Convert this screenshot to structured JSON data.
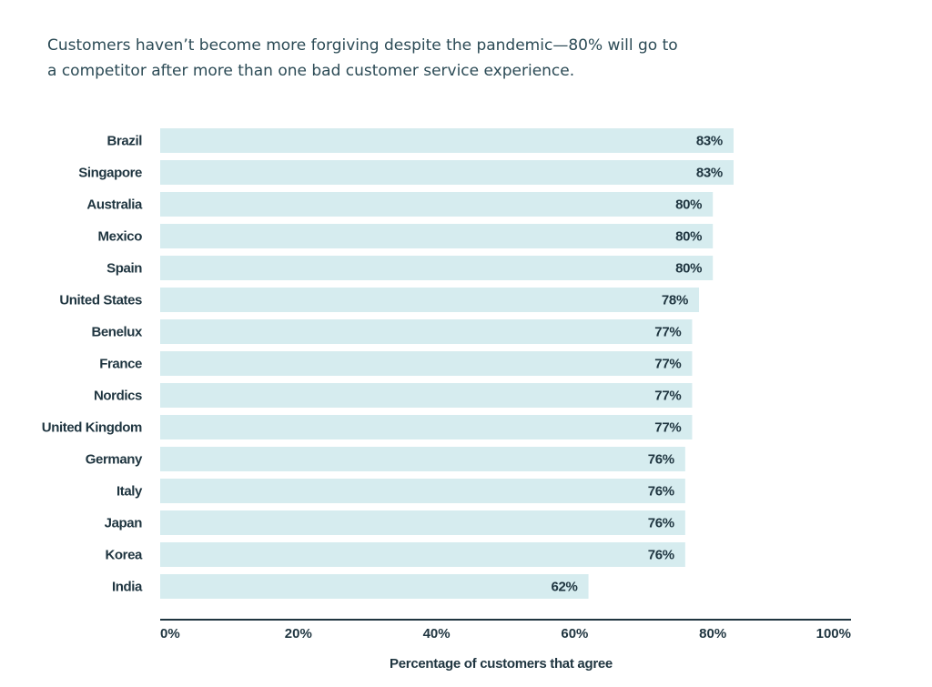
{
  "title": "Customers haven’t become more forgiving despite the pandemic—80% will go to a competitor after more than one bad customer service experience.",
  "colors": {
    "bar": "#d6ecef",
    "axis": "#1f3540",
    "text": "#1f3540",
    "title": "#2b4a55"
  },
  "chart_data": {
    "type": "bar",
    "orientation": "horizontal",
    "categories": [
      "Brazil",
      "Singapore",
      "Australia",
      "Mexico",
      "Spain",
      "United States",
      "Benelux",
      "France",
      "Nordics",
      "United Kingdom",
      "Germany",
      "Italy",
      "Japan",
      "Korea",
      "India"
    ],
    "values": [
      83,
      83,
      80,
      80,
      80,
      78,
      77,
      77,
      77,
      77,
      76,
      76,
      76,
      76,
      62
    ],
    "value_labels": [
      "83%",
      "83%",
      "80%",
      "80%",
      "80%",
      "78%",
      "77%",
      "77%",
      "77%",
      "77%",
      "76%",
      "76%",
      "76%",
      "76%",
      "62%"
    ],
    "xlim": [
      0,
      100
    ],
    "ticks": [
      0,
      20,
      40,
      60,
      80,
      100
    ],
    "tick_labels": [
      "0%",
      "20%",
      "40%",
      "60%",
      "80%",
      "100%"
    ],
    "xlabel": "Percentage of customers that agree",
    "ylabel": "",
    "grid": false,
    "legend": "none"
  }
}
